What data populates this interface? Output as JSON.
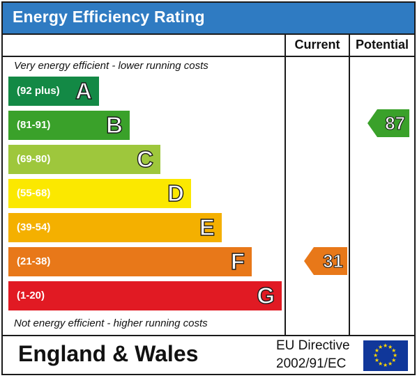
{
  "header": {
    "title": "Energy Efficiency Rating"
  },
  "columns": {
    "current": "Current",
    "potential": "Potential"
  },
  "notes": {
    "top": "Very energy efficient - lower running costs",
    "bottom": "Not energy efficient - higher running costs"
  },
  "bands": [
    {
      "letter": "A",
      "range": "(92 plus)",
      "color": "#138945"
    },
    {
      "letter": "B",
      "range": "(81-91)",
      "color": "#3aa12a"
    },
    {
      "letter": "C",
      "range": "(69-80)",
      "color": "#9ec73c"
    },
    {
      "letter": "D",
      "range": "(55-68)",
      "color": "#fbe800"
    },
    {
      "letter": "E",
      "range": "(39-54)",
      "color": "#f4b000"
    },
    {
      "letter": "F",
      "range": "(21-38)",
      "color": "#e87819"
    },
    {
      "letter": "G",
      "range": "(1-20)",
      "color": "#e11a23"
    }
  ],
  "current": {
    "value": "31",
    "band": "F",
    "color": "#e87819"
  },
  "potential": {
    "value": "87",
    "band": "B",
    "color": "#3aa12a"
  },
  "footer": {
    "country": "England & Wales",
    "directive_line1": "EU Directive",
    "directive_line2": "2002/91/EC"
  },
  "icons": {
    "flag": "eu-flag-icon",
    "star": "star-icon"
  }
}
